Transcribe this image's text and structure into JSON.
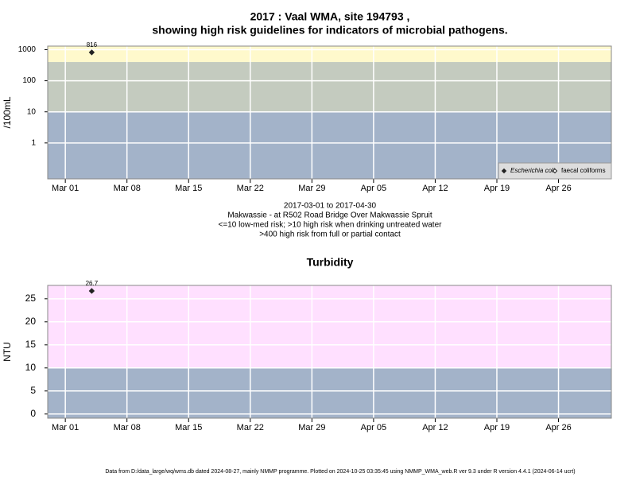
{
  "title": [
    "2017 : Vaal WMA, site 194793 ,",
    "showing high risk guidelines for indicators of microbial pathogens."
  ],
  "footer": "Data from D:/data_large/wq/wms.db dated 2024-08-27, mainly NMMP programme. Plotted on 2024-10-25 03:35:45 using NMMP_WMA_web.R ver 9.3 under R version 4.4.1 (2024-06-14 ucrt)",
  "chart_data": [
    {
      "type": "scatter",
      "ylabel": "/100mL",
      "ylog": true,
      "ylim": [
        0.07,
        1300
      ],
      "yticks": [
        1,
        10,
        100,
        1000
      ],
      "xlim": [
        "Feb 27",
        "May 02"
      ],
      "xticks": [
        "Mar 01",
        "Mar 08",
        "Mar 15",
        "Mar 22",
        "Mar 29",
        "Apr 05",
        "Apr 12",
        "Apr 19",
        "Apr 26"
      ],
      "grid": true,
      "legend": "lower right",
      "bands": [
        {
          "to": 10,
          "color": "#a3b3c9"
        },
        {
          "from": 10,
          "to": 400,
          "color": "#c4cbbf"
        },
        {
          "from": 400,
          "color": "#fff9cc"
        }
      ],
      "series": [
        {
          "name": "Escherichia coli",
          "color": "#222222",
          "filled": true,
          "x": [
            "Mar 04"
          ],
          "values": [
            816
          ]
        },
        {
          "name": "faecal coliforms",
          "color": "#222222",
          "filled": false,
          "x": [],
          "values": []
        }
      ],
      "notes": [
        "2017-03-01 to 2017-04-30",
        "Makwassie - at R502 Road Bridge Over Makwassie Spruit",
        "<=10 low-med risk; >10 high risk when drinking untreated water",
        ">400 high risk from full or partial contact"
      ]
    },
    {
      "type": "scatter",
      "title": "Turbidity",
      "ylabel": "NTU",
      "ylim": [
        -0.9,
        27.9
      ],
      "yticks": [
        0,
        5,
        10,
        15,
        20,
        25
      ],
      "xlim": [
        "Feb 27",
        "May 02"
      ],
      "xticks": [
        "Mar 01",
        "Mar 08",
        "Mar 15",
        "Mar 22",
        "Mar 29",
        "Apr 05",
        "Apr 12",
        "Apr 19",
        "Apr 26"
      ],
      "grid": true,
      "bands": [
        {
          "to": 10,
          "color": "#a3b3c9"
        },
        {
          "from": 10,
          "color": "#ffe0ff"
        }
      ],
      "color": "#222222",
      "x": [
        "Mar 04"
      ],
      "values": [
        26.7
      ]
    }
  ]
}
